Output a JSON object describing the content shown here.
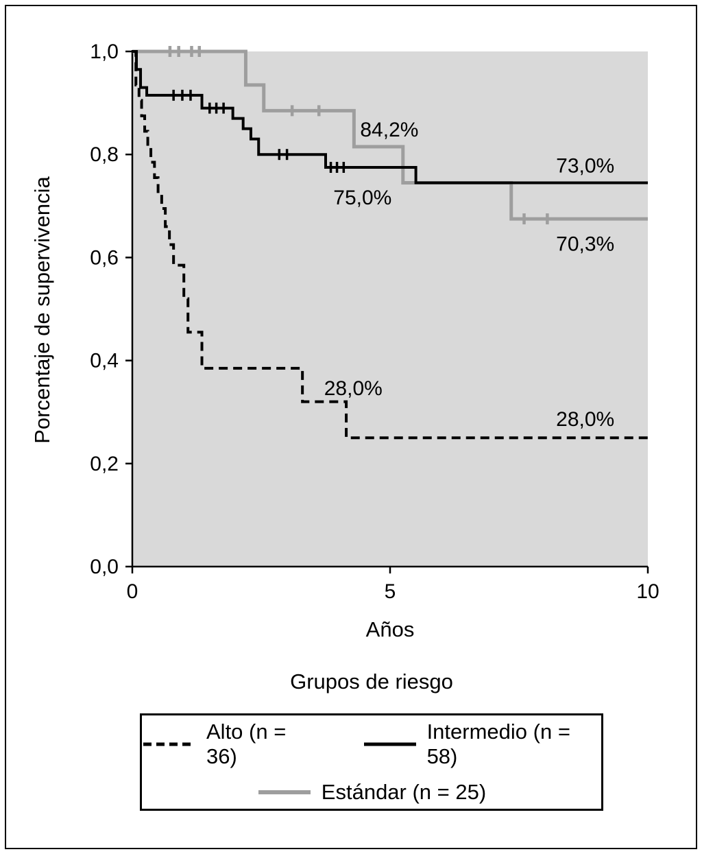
{
  "chart_data": {
    "type": "line",
    "subtype": "kaplan_meier_step",
    "title": "",
    "xlabel": "Años",
    "ylabel": "Porcentaje de supervivencia",
    "legend_title": "Grupos de riesgo",
    "legend_position": "bottom",
    "grid": false,
    "xlim": [
      0,
      10
    ],
    "ylim": [
      0.0,
      1.0
    ],
    "x_ticks": {
      "values": [
        0,
        5,
        10
      ],
      "labels": [
        "0",
        "5",
        "10"
      ]
    },
    "y_ticks": {
      "values": [
        0.0,
        0.2,
        0.4,
        0.6,
        0.8,
        1.0
      ],
      "labels": [
        "0,0",
        "0,2",
        "0,4",
        "0,6",
        "0,8",
        "1,0"
      ]
    },
    "plot_background": "#d9d9d9",
    "axis_color": "#000000",
    "series": [
      {
        "id": "alto",
        "name": "Alto (n = 36)",
        "n": 36,
        "color": "#000000",
        "line_style": "dashed",
        "width": 4,
        "step_points": [
          [
            0,
            1.0
          ],
          [
            0.07,
            0.935
          ],
          [
            0.13,
            0.905
          ],
          [
            0.18,
            0.875
          ],
          [
            0.24,
            0.845
          ],
          [
            0.3,
            0.815
          ],
          [
            0.36,
            0.785
          ],
          [
            0.43,
            0.755
          ],
          [
            0.5,
            0.725
          ],
          [
            0.57,
            0.695
          ],
          [
            0.64,
            0.66
          ],
          [
            0.72,
            0.625
          ],
          [
            0.8,
            0.585
          ],
          [
            1.0,
            0.52
          ],
          [
            1.08,
            0.455
          ],
          [
            1.35,
            0.385
          ],
          [
            3.3,
            0.32
          ],
          [
            4.15,
            0.25
          ],
          [
            10,
            0.25
          ]
        ],
        "censors": []
      },
      {
        "id": "intermedio",
        "name": "Intermedio (n = 58)",
        "n": 58,
        "color": "#000000",
        "line_style": "solid",
        "width": 4,
        "step_points": [
          [
            0,
            1.0
          ],
          [
            0.08,
            0.965
          ],
          [
            0.16,
            0.93
          ],
          [
            0.28,
            0.915
          ],
          [
            1.35,
            0.89
          ],
          [
            1.95,
            0.87
          ],
          [
            2.15,
            0.85
          ],
          [
            2.3,
            0.83
          ],
          [
            2.45,
            0.8
          ],
          [
            3.75,
            0.775
          ],
          [
            5.5,
            0.745
          ],
          [
            10,
            0.745
          ]
        ],
        "censors": [
          [
            0.8,
            0.915
          ],
          [
            0.97,
            0.915
          ],
          [
            1.13,
            0.915
          ],
          [
            1.5,
            0.89
          ],
          [
            1.63,
            0.89
          ],
          [
            1.77,
            0.89
          ],
          [
            2.85,
            0.8
          ],
          [
            3.0,
            0.8
          ],
          [
            3.85,
            0.775
          ],
          [
            3.97,
            0.775
          ],
          [
            4.1,
            0.775
          ]
        ]
      },
      {
        "id": "estandar",
        "name": "Estándar (n = 25)",
        "n": 25,
        "color": "#9e9e9e",
        "line_style": "solid",
        "width": 5,
        "step_points": [
          [
            0,
            1.0
          ],
          [
            2.2,
            0.935
          ],
          [
            2.55,
            0.885
          ],
          [
            4.3,
            0.815
          ],
          [
            5.25,
            0.745
          ],
          [
            7.35,
            0.675
          ],
          [
            10,
            0.675
          ]
        ],
        "censors": [
          [
            0.73,
            1.0
          ],
          [
            0.9,
            1.0
          ],
          [
            1.15,
            1.0
          ],
          [
            1.3,
            1.0
          ],
          [
            3.1,
            0.885
          ],
          [
            3.62,
            0.885
          ],
          [
            7.6,
            0.675
          ],
          [
            8.05,
            0.675
          ]
        ]
      }
    ],
    "annotations": [
      {
        "text": "84,2%",
        "x": 4.42,
        "y": 0.835
      },
      {
        "text": "75,0%",
        "x": 3.9,
        "y": 0.703
      },
      {
        "text": "73,0%",
        "x": 8.22,
        "y": 0.765
      },
      {
        "text": "70,3%",
        "x": 8.22,
        "y": 0.613
      },
      {
        "text": "28,0%",
        "x": 3.72,
        "y": 0.333
      },
      {
        "text": "28,0%",
        "x": 8.22,
        "y": 0.273
      }
    ]
  }
}
